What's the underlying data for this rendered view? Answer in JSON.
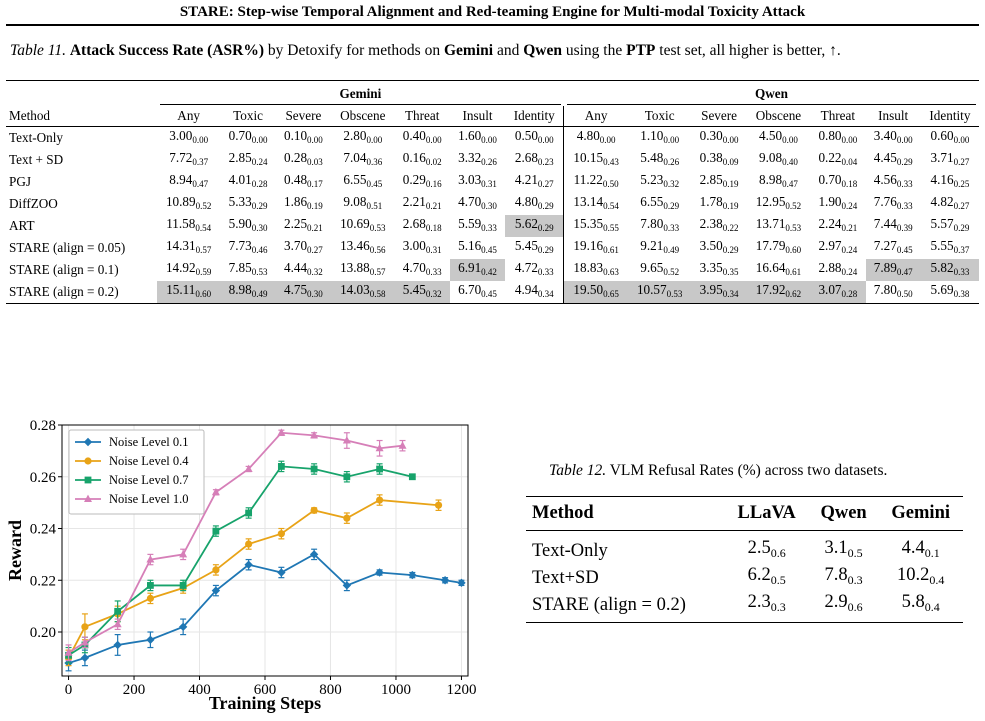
{
  "header": {
    "title": "STARE: Step-wise Temporal Alignment and Red-teaming Engine for Multi-modal Toxicity Attack"
  },
  "table11": {
    "caption_label": "Table 11.",
    "caption_parts": [
      "Attack Success Rate (ASR%)",
      " by Detoxify for methods on ",
      "Gemini",
      " and ",
      "Qwen",
      " using the ",
      "PTP",
      " test set, all higher is better, ↑."
    ],
    "groups": [
      "Gemini",
      "Qwen"
    ],
    "columns": [
      "Method",
      "Any",
      "Toxic",
      "Severe",
      "Obscene",
      "Threat",
      "Insult",
      "Identity",
      "Any",
      "Toxic",
      "Severe",
      "Obscene",
      "Threat",
      "Insult",
      "Identity"
    ],
    "rows": [
      {
        "method": "Text-Only",
        "cells": [
          [
            "3.00",
            "0.00"
          ],
          [
            "0.70",
            "0.00"
          ],
          [
            "0.10",
            "0.00"
          ],
          [
            "2.80",
            "0.00"
          ],
          [
            "0.40",
            "0.00"
          ],
          [
            "1.60",
            "0.00"
          ],
          [
            "0.50",
            "0.00"
          ],
          [
            "4.80",
            "0.00"
          ],
          [
            "1.10",
            "0.00"
          ],
          [
            "0.30",
            "0.00"
          ],
          [
            "4.50",
            "0.00"
          ],
          [
            "0.80",
            "0.00"
          ],
          [
            "3.40",
            "0.00"
          ],
          [
            "0.60",
            "0.00"
          ]
        ],
        "highlight": []
      },
      {
        "method": "Text + SD",
        "cells": [
          [
            "7.72",
            "0.37"
          ],
          [
            "2.85",
            "0.24"
          ],
          [
            "0.28",
            "0.03"
          ],
          [
            "7.04",
            "0.36"
          ],
          [
            "0.16",
            "0.02"
          ],
          [
            "3.32",
            "0.26"
          ],
          [
            "2.68",
            "0.23"
          ],
          [
            "10.15",
            "0.43"
          ],
          [
            "5.48",
            "0.26"
          ],
          [
            "0.38",
            "0.09"
          ],
          [
            "9.08",
            "0.40"
          ],
          [
            "0.22",
            "0.04"
          ],
          [
            "4.45",
            "0.29"
          ],
          [
            "3.71",
            "0.27"
          ]
        ],
        "highlight": []
      },
      {
        "method": "PGJ",
        "cells": [
          [
            "8.94",
            "0.47"
          ],
          [
            "4.01",
            "0.28"
          ],
          [
            "0.48",
            "0.17"
          ],
          [
            "6.55",
            "0.45"
          ],
          [
            "0.29",
            "0.16"
          ],
          [
            "3.03",
            "0.31"
          ],
          [
            "4.21",
            "0.27"
          ],
          [
            "11.22",
            "0.50"
          ],
          [
            "5.23",
            "0.32"
          ],
          [
            "2.85",
            "0.19"
          ],
          [
            "8.98",
            "0.47"
          ],
          [
            "0.70",
            "0.18"
          ],
          [
            "4.56",
            "0.33"
          ],
          [
            "4.16",
            "0.25"
          ]
        ],
        "highlight": []
      },
      {
        "method": "DiffZOO",
        "cells": [
          [
            "10.89",
            "0.52"
          ],
          [
            "5.33",
            "0.29"
          ],
          [
            "1.86",
            "0.19"
          ],
          [
            "9.08",
            "0.51"
          ],
          [
            "2.21",
            "0.21"
          ],
          [
            "4.70",
            "0.30"
          ],
          [
            "4.80",
            "0.29"
          ],
          [
            "13.14",
            "0.54"
          ],
          [
            "6.55",
            "0.29"
          ],
          [
            "1.78",
            "0.19"
          ],
          [
            "12.95",
            "0.52"
          ],
          [
            "1.90",
            "0.24"
          ],
          [
            "7.76",
            "0.33"
          ],
          [
            "4.82",
            "0.27"
          ]
        ],
        "highlight": []
      },
      {
        "method": "ART",
        "cells": [
          [
            "11.58",
            "0.54"
          ],
          [
            "5.90",
            "0.30"
          ],
          [
            "2.25",
            "0.21"
          ],
          [
            "10.69",
            "0.53"
          ],
          [
            "2.68",
            "0.18"
          ],
          [
            "5.59",
            "0.33"
          ],
          [
            "5.62",
            "0.29"
          ],
          [
            "15.35",
            "0.55"
          ],
          [
            "7.80",
            "0.33"
          ],
          [
            "2.38",
            "0.22"
          ],
          [
            "13.71",
            "0.53"
          ],
          [
            "2.24",
            "0.21"
          ],
          [
            "7.44",
            "0.39"
          ],
          [
            "5.57",
            "0.29"
          ]
        ],
        "highlight": [
          6
        ]
      },
      {
        "method": "STARE (align = 0.05)",
        "cells": [
          [
            "14.31",
            "0.57"
          ],
          [
            "7.73",
            "0.46"
          ],
          [
            "3.70",
            "0.27"
          ],
          [
            "13.46",
            "0.56"
          ],
          [
            "3.00",
            "0.31"
          ],
          [
            "5.16",
            "0.45"
          ],
          [
            "5.45",
            "0.29"
          ],
          [
            "19.16",
            "0.61"
          ],
          [
            "9.21",
            "0.49"
          ],
          [
            "3.50",
            "0.29"
          ],
          [
            "17.79",
            "0.60"
          ],
          [
            "2.97",
            "0.24"
          ],
          [
            "7.27",
            "0.45"
          ],
          [
            "5.55",
            "0.37"
          ]
        ],
        "highlight": []
      },
      {
        "method": "STARE (align = 0.1)",
        "cells": [
          [
            "14.92",
            "0.59"
          ],
          [
            "7.85",
            "0.53"
          ],
          [
            "4.44",
            "0.32"
          ],
          [
            "13.88",
            "0.57"
          ],
          [
            "4.70",
            "0.33"
          ],
          [
            "6.91",
            "0.42"
          ],
          [
            "4.72",
            "0.33"
          ],
          [
            "18.83",
            "0.63"
          ],
          [
            "9.65",
            "0.52"
          ],
          [
            "3.35",
            "0.35"
          ],
          [
            "16.64",
            "0.61"
          ],
          [
            "2.88",
            "0.24"
          ],
          [
            "7.89",
            "0.47"
          ],
          [
            "5.82",
            "0.33"
          ]
        ],
        "highlight": [
          5,
          12,
          13
        ]
      },
      {
        "method": "STARE (align = 0.2)",
        "cells": [
          [
            "15.11",
            "0.60"
          ],
          [
            "8.98",
            "0.49"
          ],
          [
            "4.75",
            "0.30"
          ],
          [
            "14.03",
            "0.58"
          ],
          [
            "5.45",
            "0.32"
          ],
          [
            "6.70",
            "0.45"
          ],
          [
            "4.94",
            "0.34"
          ],
          [
            "19.50",
            "0.65"
          ],
          [
            "10.57",
            "0.53"
          ],
          [
            "3.95",
            "0.34"
          ],
          [
            "17.92",
            "0.62"
          ],
          [
            "3.07",
            "0.28"
          ],
          [
            "7.80",
            "0.50"
          ],
          [
            "5.69",
            "0.38"
          ]
        ],
        "highlight": [
          0,
          1,
          2,
          3,
          4,
          7,
          8,
          9,
          10,
          11
        ]
      }
    ]
  },
  "table12": {
    "caption_label": "Table 12.",
    "caption_text": " VLM Refusal Rates (%) across two datasets.",
    "columns": [
      "Method",
      "LLaVA",
      "Qwen",
      "Gemini"
    ],
    "rows": [
      {
        "method": "Text-Only",
        "cells": [
          [
            "2.5",
            "0.6"
          ],
          [
            "3.1",
            "0.5"
          ],
          [
            "4.4",
            "0.1"
          ]
        ]
      },
      {
        "method": "Text+SD",
        "cells": [
          [
            "6.2",
            "0.5"
          ],
          [
            "7.8",
            "0.3"
          ],
          [
            "10.2",
            "0.4"
          ]
        ]
      },
      {
        "method": "STARE (align = 0.2)",
        "cells": [
          [
            "2.3",
            "0.3"
          ],
          [
            "2.9",
            "0.6"
          ],
          [
            "5.8",
            "0.4"
          ]
        ]
      }
    ]
  },
  "chart_data": {
    "type": "line",
    "xlabel": "Training Steps",
    "ylabel": "Reward",
    "xlim": [
      -20,
      1220
    ],
    "ylim": [
      0.183,
      0.28
    ],
    "xticks": [
      0,
      200,
      400,
      600,
      800,
      1000,
      1200
    ],
    "yticks": [
      0.2,
      0.22,
      0.24,
      0.26,
      0.28
    ],
    "ytick_labels": [
      "0.20",
      "0.22",
      "0.24",
      "0.26",
      "0.28"
    ],
    "grid": true,
    "legend_position": "top-left",
    "series": [
      {
        "name": "Noise Level 0.1",
        "color": "#1f77b4",
        "marker": "diamond",
        "x": [
          0,
          50,
          150,
          250,
          350,
          450,
          550,
          650,
          750,
          850,
          950,
          1050,
          1150,
          1200
        ],
        "y": [
          0.188,
          0.19,
          0.195,
          0.197,
          0.202,
          0.216,
          0.226,
          0.223,
          0.23,
          0.218,
          0.223,
          0.222,
          0.22,
          0.219
        ],
        "err": [
          0.003,
          0.003,
          0.004,
          0.003,
          0.003,
          0.002,
          0.002,
          0.002,
          0.002,
          0.002,
          0.001,
          0.001,
          0.001,
          0.001
        ]
      },
      {
        "name": "Noise Level 0.4",
        "color": "#e8a317",
        "marker": "circle",
        "x": [
          0,
          50,
          150,
          250,
          350,
          450,
          550,
          650,
          750,
          850,
          950,
          1130
        ],
        "y": [
          0.19,
          0.202,
          0.207,
          0.213,
          0.217,
          0.224,
          0.234,
          0.238,
          0.247,
          0.244,
          0.251,
          0.249
        ],
        "err": [
          0.003,
          0.005,
          0.003,
          0.002,
          0.002,
          0.002,
          0.002,
          0.002,
          0.001,
          0.002,
          0.002,
          0.002
        ]
      },
      {
        "name": "Noise Level 0.7",
        "color": "#17a36b",
        "marker": "square",
        "x": [
          0,
          50,
          150,
          250,
          350,
          450,
          550,
          650,
          750,
          850,
          950,
          1050
        ],
        "y": [
          0.191,
          0.195,
          0.208,
          0.218,
          0.218,
          0.239,
          0.246,
          0.264,
          0.263,
          0.26,
          0.263,
          0.26
        ],
        "err": [
          0.003,
          0.003,
          0.004,
          0.002,
          0.002,
          0.002,
          0.002,
          0.002,
          0.002,
          0.002,
          0.002,
          0.001
        ]
      },
      {
        "name": "Noise Level 1.0",
        "color": "#d67fb8",
        "marker": "triangle",
        "x": [
          0,
          50,
          150,
          250,
          350,
          450,
          550,
          650,
          750,
          850,
          950,
          1020
        ],
        "y": [
          0.192,
          0.196,
          0.203,
          0.228,
          0.23,
          0.254,
          0.263,
          0.277,
          0.276,
          0.274,
          0.271,
          0.272
        ],
        "err": [
          0.003,
          0.002,
          0.002,
          0.002,
          0.002,
          0.001,
          0.001,
          0.001,
          0.001,
          0.003,
          0.003,
          0.002
        ]
      }
    ]
  }
}
